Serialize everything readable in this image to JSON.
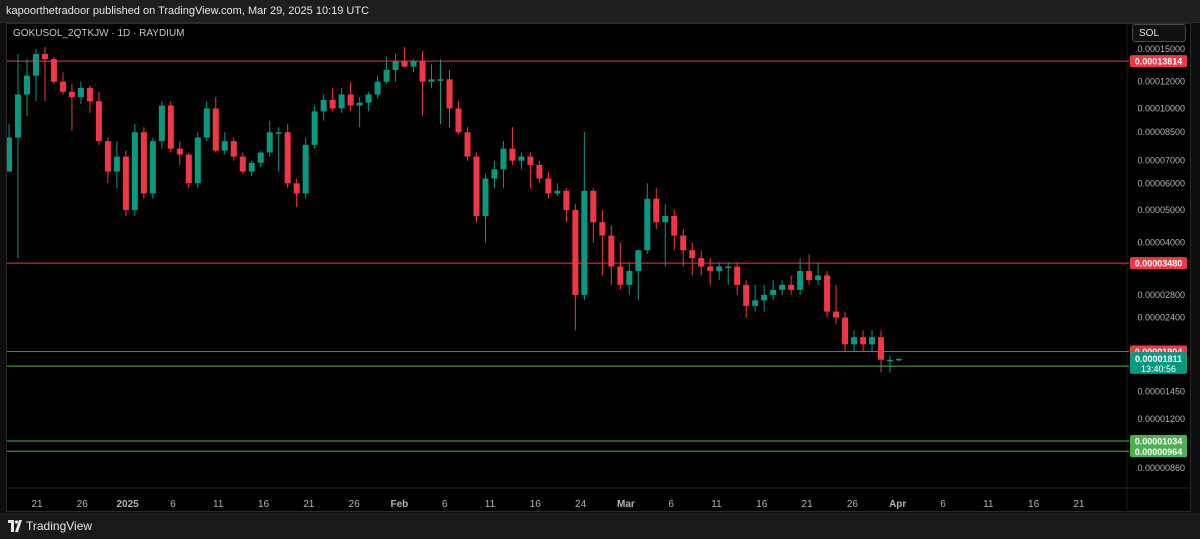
{
  "header": {
    "published_text": "kapoorthetradoor published on TradingView.com, Mar 29, 2025 10:19 UTC"
  },
  "symbol_label": "GOKUSOL_2QTKJW · 1D · RAYDIUM",
  "currency_label": "SOL",
  "footer": {
    "brand": "TradingView"
  },
  "colors": {
    "up": "#089981",
    "down": "#f23645",
    "resistance": "#f23645",
    "support": "#4caf50",
    "axis_text": "#b2b5be",
    "grid": "#000000"
  },
  "chart_data": {
    "type": "candlestick",
    "title": "",
    "xlabel": "",
    "ylabel": "",
    "y_scale": "log",
    "ylim": [
      7.9e-06,
      1.53e-05
    ],
    "grid": false,
    "y_ticks": [
      "0.00015000",
      "0.00012000",
      "0.00010000",
      "0.00008500",
      "0.00007000",
      "0.00006000",
      "0.00005000",
      "0.00004000",
      "0.00002800",
      "0.00002400",
      "0.00001450",
      "0.00001200",
      "0.00000860"
    ],
    "x_ticks": [
      {
        "label": "21",
        "bold": false
      },
      {
        "label": "26",
        "bold": false
      },
      {
        "label": "2025",
        "bold": true
      },
      {
        "label": "6",
        "bold": false
      },
      {
        "label": "11",
        "bold": false
      },
      {
        "label": "16",
        "bold": false
      },
      {
        "label": "21",
        "bold": false
      },
      {
        "label": "26",
        "bold": false
      },
      {
        "label": "Feb",
        "bold": true
      },
      {
        "label": "6",
        "bold": false
      },
      {
        "label": "11",
        "bold": false
      },
      {
        "label": "16",
        "bold": false
      },
      {
        "label": "24",
        "bold": false
      },
      {
        "label": "Mar",
        "bold": true
      },
      {
        "label": "6",
        "bold": false
      },
      {
        "label": "11",
        "bold": false
      },
      {
        "label": "16",
        "bold": false
      },
      {
        "label": "21",
        "bold": false
      },
      {
        "label": "26",
        "bold": false
      },
      {
        "label": "Apr",
        "bold": true
      },
      {
        "label": "6",
        "bold": false
      },
      {
        "label": "11",
        "bold": false
      },
      {
        "label": "16",
        "bold": false
      },
      {
        "label": "21",
        "bold": false
      }
    ],
    "levels": [
      {
        "value": 0.00013814,
        "label": "0.00013814",
        "kind": "resistance"
      },
      {
        "value": 3.48e-05,
        "label": "0.00003480",
        "kind": "resistance"
      },
      {
        "value": 1.904e-05,
        "label": "0.00001904",
        "kind": "resistance"
      },
      {
        "value": 1.724e-05,
        "label": "0.00001724",
        "kind": "support"
      },
      {
        "value": 1.034e-05,
        "label": "0.00001034",
        "kind": "support"
      },
      {
        "value": 9.64e-06,
        "label": "0.00000964",
        "kind": "support"
      }
    ],
    "current_price": {
      "value": 1.811e-05,
      "label": "0.00001811",
      "countdown": "13:40:56"
    },
    "candles": [
      {
        "o": 6.5e-05,
        "h": 9e-05,
        "l": 6.5e-05,
        "c": 8.2e-05
      },
      {
        "o": 8.2e-05,
        "h": 0.000145,
        "l": 3.6e-05,
        "c": 0.00011
      },
      {
        "o": 0.00011,
        "h": 0.00014,
        "l": 9.5e-05,
        "c": 0.000125
      },
      {
        "o": 0.000125,
        "h": 0.00015,
        "l": 0.000105,
        "c": 0.000145
      },
      {
        "o": 0.000145,
        "h": 0.000152,
        "l": 0.000105,
        "c": 0.00014
      },
      {
        "o": 0.00014,
        "h": 0.000142,
        "l": 0.000118,
        "c": 0.00012
      },
      {
        "o": 0.00012,
        "h": 0.000128,
        "l": 0.00011,
        "c": 0.000112
      },
      {
        "o": 0.000112,
        "h": 0.000118,
        "l": 8.6e-05,
        "c": 0.000108
      },
      {
        "o": 0.000108,
        "h": 0.00012,
        "l": 0.000103,
        "c": 0.000115
      },
      {
        "o": 0.000115,
        "h": 0.000117,
        "l": 9.7e-05,
        "c": 0.000105
      },
      {
        "o": 0.000105,
        "h": 0.000112,
        "l": 7.8e-05,
        "c": 8e-05
      },
      {
        "o": 8e-05,
        "h": 8.2e-05,
        "l": 6e-05,
        "c": 6.5e-05
      },
      {
        "o": 6.5e-05,
        "h": 8e-05,
        "l": 5.8e-05,
        "c": 7.2e-05
      },
      {
        "o": 7.2e-05,
        "h": 7.5e-05,
        "l": 4.8e-05,
        "c": 5e-05
      },
      {
        "o": 5e-05,
        "h": 9e-05,
        "l": 4.8e-05,
        "c": 8.5e-05
      },
      {
        "o": 8.5e-05,
        "h": 8.8e-05,
        "l": 5.4e-05,
        "c": 5.6e-05
      },
      {
        "o": 5.6e-05,
        "h": 8.2e-05,
        "l": 5.4e-05,
        "c": 8e-05
      },
      {
        "o": 8e-05,
        "h": 0.000105,
        "l": 7.6e-05,
        "c": 0.000102
      },
      {
        "o": 0.000102,
        "h": 0.000105,
        "l": 7.4e-05,
        "c": 7.6e-05
      },
      {
        "o": 7.6e-05,
        "h": 8e-05,
        "l": 6.8e-05,
        "c": 7.3e-05
      },
      {
        "o": 7.3e-05,
        "h": 7.4e-05,
        "l": 5.8e-05,
        "c": 6e-05
      },
      {
        "o": 6e-05,
        "h": 8.5e-05,
        "l": 5.8e-05,
        "c": 8.2e-05
      },
      {
        "o": 8.2e-05,
        "h": 0.000105,
        "l": 8e-05,
        "c": 0.0001
      },
      {
        "o": 0.0001,
        "h": 0.000108,
        "l": 7.4e-05,
        "c": 7.5e-05
      },
      {
        "o": 7.5e-05,
        "h": 8.5e-05,
        "l": 7.3e-05,
        "c": 8e-05
      },
      {
        "o": 8e-05,
        "h": 8.2e-05,
        "l": 7e-05,
        "c": 7.2e-05
      },
      {
        "o": 7.2e-05,
        "h": 7.4e-05,
        "l": 6.4e-05,
        "c": 6.5e-05
      },
      {
        "o": 6.5e-05,
        "h": 7e-05,
        "l": 6.3e-05,
        "c": 6.9e-05
      },
      {
        "o": 6.9e-05,
        "h": 7.5e-05,
        "l": 6.7e-05,
        "c": 7.4e-05
      },
      {
        "o": 7.4e-05,
        "h": 9.2e-05,
        "l": 7.2e-05,
        "c": 8.5e-05
      },
      {
        "o": 8.5e-05,
        "h": 8.8e-05,
        "l": 6.5e-05,
        "c": 8.5e-05
      },
      {
        "o": 8.5e-05,
        "h": 9e-05,
        "l": 5.8e-05,
        "c": 6e-05
      },
      {
        "o": 6e-05,
        "h": 6.2e-05,
        "l": 5.1e-05,
        "c": 5.6e-05
      },
      {
        "o": 5.6e-05,
        "h": 8.2e-05,
        "l": 5.4e-05,
        "c": 7.8e-05
      },
      {
        "o": 7.8e-05,
        "h": 0.000102,
        "l": 7.6e-05,
        "c": 9.8e-05
      },
      {
        "o": 9.8e-05,
        "h": 0.00011,
        "l": 9.2e-05,
        "c": 0.000106
      },
      {
        "o": 0.000106,
        "h": 0.000115,
        "l": 9.8e-05,
        "c": 0.0001
      },
      {
        "o": 0.0001,
        "h": 0.000115,
        "l": 9.7e-05,
        "c": 0.00011
      },
      {
        "o": 0.00011,
        "h": 0.00012,
        "l": 9.8e-05,
        "c": 0.000102
      },
      {
        "o": 0.000102,
        "h": 0.000108,
        "l": 8.8e-05,
        "c": 0.000104
      },
      {
        "o": 0.000104,
        "h": 0.000112,
        "l": 9.8e-05,
        "c": 0.00011
      },
      {
        "o": 0.00011,
        "h": 0.000125,
        "l": 0.000107,
        "c": 0.00012
      },
      {
        "o": 0.00012,
        "h": 0.000142,
        "l": 0.000118,
        "c": 0.00013
      },
      {
        "o": 0.00013,
        "h": 0.000145,
        "l": 0.00012,
        "c": 0.000138
      },
      {
        "o": 0.000138,
        "h": 0.000152,
        "l": 0.000132,
        "c": 0.000133
      },
      {
        "o": 0.000133,
        "h": 0.00014,
        "l": 0.000128,
        "c": 0.000138
      },
      {
        "o": 0.000138,
        "h": 0.000148,
        "l": 9.5e-05,
        "c": 0.00012
      },
      {
        "o": 0.00012,
        "h": 0.000135,
        "l": 0.000115,
        "c": 0.000122
      },
      {
        "o": 0.000122,
        "h": 0.00014,
        "l": 9e-05,
        "c": 0.000122
      },
      {
        "o": 0.000122,
        "h": 0.00013,
        "l": 8.8e-05,
        "c": 0.0001
      },
      {
        "o": 0.0001,
        "h": 0.000105,
        "l": 8.4e-05,
        "c": 8.5e-05
      },
      {
        "o": 8.5e-05,
        "h": 8.8e-05,
        "l": 7e-05,
        "c": 7.2e-05
      },
      {
        "o": 7.2e-05,
        "h": 7.4e-05,
        "l": 4.6e-05,
        "c": 4.8e-05
      },
      {
        "o": 4.8e-05,
        "h": 6.4e-05,
        "l": 4e-05,
        "c": 6.2e-05
      },
      {
        "o": 6.2e-05,
        "h": 7e-05,
        "l": 5.8e-05,
        "c": 6.6e-05
      },
      {
        "o": 6.6e-05,
        "h": 8e-05,
        "l": 5.8e-05,
        "c": 7.6e-05
      },
      {
        "o": 7.6e-05,
        "h": 8.8e-05,
        "l": 6.8e-05,
        "c": 7e-05
      },
      {
        "o": 7e-05,
        "h": 7.4e-05,
        "l": 6.6e-05,
        "c": 7.2e-05
      },
      {
        "o": 7.2e-05,
        "h": 7.4e-05,
        "l": 5.8e-05,
        "c": 6.8e-05
      },
      {
        "o": 6.8e-05,
        "h": 7e-05,
        "l": 6e-05,
        "c": 6.2e-05
      },
      {
        "o": 6.2e-05,
        "h": 6.5e-05,
        "l": 5.4e-05,
        "c": 5.6e-05
      },
      {
        "o": 5.6e-05,
        "h": 6e-05,
        "l": 5.5e-05,
        "c": 5.7e-05
      },
      {
        "o": 5.7e-05,
        "h": 5.8e-05,
        "l": 4.6e-05,
        "c": 5e-05
      },
      {
        "o": 5e-05,
        "h": 5.2e-05,
        "l": 2.2e-05,
        "c": 2.8e-05
      },
      {
        "o": 2.8e-05,
        "h": 8.5e-05,
        "l": 2.7e-05,
        "c": 5.7e-05
      },
      {
        "o": 5.7e-05,
        "h": 5.8e-05,
        "l": 4e-05,
        "c": 4.6e-05
      },
      {
        "o": 4.6e-05,
        "h": 5e-05,
        "l": 3.2e-05,
        "c": 4.2e-05
      },
      {
        "o": 4.2e-05,
        "h": 4.5e-05,
        "l": 3e-05,
        "c": 3.4e-05
      },
      {
        "o": 3.4e-05,
        "h": 4e-05,
        "l": 2.9e-05,
        "c": 3e-05
      },
      {
        "o": 3e-05,
        "h": 3.5e-05,
        "l": 2.8e-05,
        "c": 3.3e-05
      },
      {
        "o": 3.3e-05,
        "h": 3.8e-05,
        "l": 2.7e-05,
        "c": 3.8e-05
      },
      {
        "o": 3.8e-05,
        "h": 6e-05,
        "l": 3.7e-05,
        "c": 5.4e-05
      },
      {
        "o": 5.4e-05,
        "h": 5.8e-05,
        "l": 4.4e-05,
        "c": 4.6e-05
      },
      {
        "o": 4.6e-05,
        "h": 5.2e-05,
        "l": 3.4e-05,
        "c": 4.8e-05
      },
      {
        "o": 4.8e-05,
        "h": 5e-05,
        "l": 3.8e-05,
        "c": 4.2e-05
      },
      {
        "o": 4.2e-05,
        "h": 4.4e-05,
        "l": 3.4e-05,
        "c": 3.8e-05
      },
      {
        "o": 3.8e-05,
        "h": 4e-05,
        "l": 3.2e-05,
        "c": 3.6e-05
      },
      {
        "o": 3.6e-05,
        "h": 3.8e-05,
        "l": 3.2e-05,
        "c": 3.4e-05
      },
      {
        "o": 3.4e-05,
        "h": 3.6e-05,
        "l": 3e-05,
        "c": 3.3e-05
      },
      {
        "o": 3.3e-05,
        "h": 3.5e-05,
        "l": 3.1e-05,
        "c": 3.4e-05
      },
      {
        "o": 3.4e-05,
        "h": 3.5e-05,
        "l": 3e-05,
        "c": 3.4e-05
      },
      {
        "o": 3.4e-05,
        "h": 3.5e-05,
        "l": 2.8e-05,
        "c": 3e-05
      },
      {
        "o": 3e-05,
        "h": 3.1e-05,
        "l": 2.4e-05,
        "c": 2.6e-05
      },
      {
        "o": 2.6e-05,
        "h": 3e-05,
        "l": 2.5e-05,
        "c": 2.7e-05
      },
      {
        "o": 2.7e-05,
        "h": 3e-05,
        "l": 2.5e-05,
        "c": 2.8e-05
      },
      {
        "o": 2.8e-05,
        "h": 3.1e-05,
        "l": 2.7e-05,
        "c": 2.9e-05
      },
      {
        "o": 2.9e-05,
        "h": 3.1e-05,
        "l": 2.8e-05,
        "c": 3e-05
      },
      {
        "o": 3e-05,
        "h": 3.2e-05,
        "l": 2.8e-05,
        "c": 2.9e-05
      },
      {
        "o": 2.9e-05,
        "h": 3.6e-05,
        "l": 2.8e-05,
        "c": 3.3e-05
      },
      {
        "o": 3.3e-05,
        "h": 3.7e-05,
        "l": 3e-05,
        "c": 3.1e-05
      },
      {
        "o": 3.1e-05,
        "h": 3.5e-05,
        "l": 3e-05,
        "c": 3.2e-05
      },
      {
        "o": 3.2e-05,
        "h": 3.3e-05,
        "l": 2.4e-05,
        "c": 2.5e-05
      },
      {
        "o": 2.5e-05,
        "h": 3e-05,
        "l": 2.3e-05,
        "c": 2.4e-05
      },
      {
        "o": 2.4e-05,
        "h": 2.5e-05,
        "l": 1.9e-05,
        "c": 2e-05
      },
      {
        "o": 2e-05,
        "h": 2.2e-05,
        "l": 1.9e-05,
        "c": 2.1e-05
      },
      {
        "o": 2.1e-05,
        "h": 2.2e-05,
        "l": 1.9e-05,
        "c": 2e-05
      },
      {
        "o": 2e-05,
        "h": 2.2e-05,
        "l": 1.9e-05,
        "c": 2.1e-05
      },
      {
        "o": 2.1e-05,
        "h": 2.2e-05,
        "l": 1.65e-05,
        "c": 1.8e-05
      },
      {
        "o": 1.8e-05,
        "h": 1.85e-05,
        "l": 1.65e-05,
        "c": 1.8e-05
      },
      {
        "o": 1.8e-05,
        "h": 1.82e-05,
        "l": 1.78e-05,
        "c": 1.81e-05
      }
    ]
  }
}
